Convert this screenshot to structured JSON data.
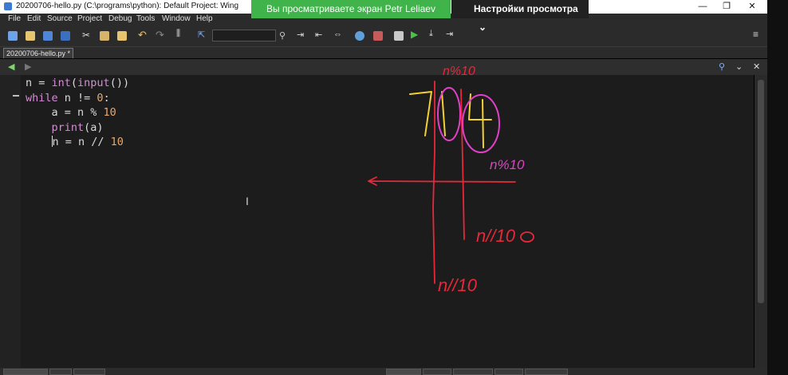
{
  "window": {
    "title": "20200706-hello.py (C:\\programs\\python): Default Project: Wing",
    "minimize_glyph": "—",
    "maximize_glyph": "❐",
    "close_glyph": "✕"
  },
  "screen_share": {
    "banner_text": "Вы просматриваете экран Petr Leliaev",
    "settings_label": "Настройки просмотра",
    "settings_chevron": "⌄"
  },
  "menu": [
    "File",
    "Edit",
    "Source",
    "Project",
    "Debug",
    "Tools",
    "Window",
    "Help"
  ],
  "editor": {
    "tab_label": "20200706-hello.py *",
    "code_lines": [
      [
        {
          "t": "n = ",
          "c": ""
        },
        {
          "t": "int",
          "c": "kw"
        },
        {
          "t": "(",
          "c": ""
        },
        {
          "t": "input",
          "c": "kw"
        },
        {
          "t": "())",
          "c": ""
        }
      ],
      [
        {
          "t": "while",
          "c": "kw"
        },
        {
          "t": " n != ",
          "c": ""
        },
        {
          "t": "0",
          "c": "num"
        },
        {
          "t": ":",
          "c": ""
        }
      ],
      [
        {
          "t": "    a = n % ",
          "c": ""
        },
        {
          "t": "10",
          "c": "num"
        }
      ],
      [
        {
          "t": "    ",
          "c": ""
        },
        {
          "t": "print",
          "c": "kw"
        },
        {
          "t": "(a)",
          "c": ""
        }
      ],
      [
        {
          "t": "    ",
          "c": ""
        },
        {
          "t": "|",
          "c": "caret"
        },
        {
          "t": "n = n // ",
          "c": ""
        },
        {
          "t": "10",
          "c": "num"
        }
      ]
    ]
  },
  "annotations": {
    "ink_colors": {
      "red": "#e8283a",
      "magenta": "#e040c8",
      "yellow": "#f2d230"
    },
    "labels": {
      "top_right": "n%10",
      "circle_right": "n%10",
      "lower_right": "n//10",
      "bottom_left": "n//10"
    },
    "digits": [
      "7",
      "1",
      "4"
    ]
  },
  "colors": {
    "share_green": "#41b34b",
    "keyword": "#d68bd6",
    "number": "#e9a86a"
  }
}
